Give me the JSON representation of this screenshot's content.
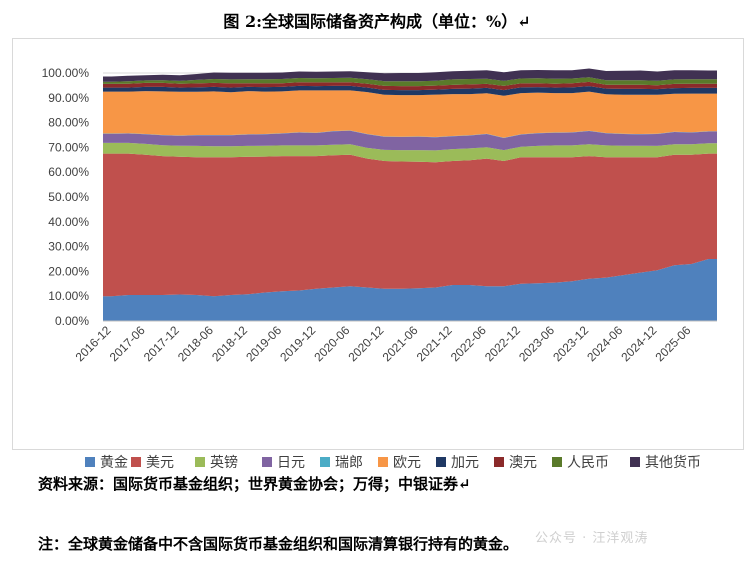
{
  "title": "图 2:全球国际储备资产构成（单位：%）↵",
  "source": "资料来源：国际货币基金组织；世界黄金协会；万得；中银证券↵",
  "note": "注：全球黄金储备中不含国际货币基金组织和国际清算银行持有的黄金。",
  "watermark": "公众号 · 汪洋观涛",
  "chart_data": {
    "type": "area",
    "stacked": true,
    "ylim": [
      0,
      100
    ],
    "yticks": [
      "0.00%",
      "10.00%",
      "20.00%",
      "30.00%",
      "40.00%",
      "50.00%",
      "60.00%",
      "70.00%",
      "80.00%",
      "90.00%",
      "100.00%"
    ],
    "x": [
      "2016-12",
      "2017-03",
      "2017-06",
      "2017-09",
      "2017-12",
      "2018-03",
      "2018-06",
      "2018-09",
      "2018-12",
      "2019-03",
      "2019-06",
      "2019-09",
      "2019-12",
      "2020-03",
      "2020-06",
      "2020-09",
      "2020-12",
      "2021-03",
      "2021-06",
      "2021-09",
      "2021-12",
      "2022-03",
      "2022-06",
      "2022-09",
      "2022-12",
      "2023-03",
      "2023-06",
      "2023-09",
      "2023-12",
      "2024-03",
      "2024-06",
      "2024-09",
      "2024-12",
      "2025-03",
      "2025-06",
      "2025-09"
    ],
    "xtick_labels": [
      "2016-12",
      "2017-06",
      "2017-12",
      "2018-06",
      "2018-12",
      "2019-06",
      "2019-12",
      "2020-06",
      "2020-12",
      "2021-06",
      "2021-12",
      "2022-06",
      "2022-12",
      "2023-06",
      "2023-12",
      "2024-06",
      "2024-12",
      "2025-06"
    ],
    "legend_position": "bottom",
    "series": [
      {
        "name": "黄金",
        "color": "#4f81bd",
        "values": [
          10,
          10.5,
          10.5,
          10.5,
          10.7,
          10.5,
          10,
          10.5,
          10.8,
          11.5,
          12,
          12.3,
          13,
          13.5,
          14,
          13.5,
          13,
          13,
          13.2,
          13.5,
          14.5,
          14.5,
          14,
          14,
          15,
          15.2,
          15.5,
          16,
          17,
          17.5,
          18.5,
          19.5,
          20.5,
          22.5,
          23,
          25
        ]
      },
      {
        "name": "美元",
        "color": "#c0504d",
        "values": [
          57.5,
          57,
          56.5,
          56,
          55.5,
          55.5,
          56,
          55.5,
          55.4,
          54.8,
          54.5,
          54.2,
          53.5,
          53.3,
          53,
          52,
          51.5,
          51.3,
          51,
          50.5,
          50,
          50.3,
          51.5,
          50.5,
          51,
          50.8,
          50.5,
          50,
          49.5,
          48.5,
          47.5,
          46.5,
          45.5,
          44.5,
          44,
          42.5
        ]
      },
      {
        "name": "英镑",
        "color": "#9bbb59",
        "values": [
          4.3,
          4.3,
          4.4,
          4.4,
          4.5,
          4.6,
          4.5,
          4.5,
          4.4,
          4.4,
          4.3,
          4.3,
          4.3,
          4.3,
          4.3,
          4.3,
          4.5,
          4.6,
          4.7,
          4.8,
          4.8,
          4.8,
          4.6,
          4.4,
          4.3,
          4.6,
          4.8,
          4.8,
          4.8,
          4.8,
          4.7,
          4.7,
          4.6,
          4.3,
          4.3,
          4.2
        ]
      },
      {
        "name": "日元",
        "color": "#8064a2",
        "values": [
          3.7,
          3.8,
          3.9,
          4,
          4,
          4.3,
          4.4,
          4.4,
          4.6,
          4.6,
          4.8,
          5.2,
          5,
          5.4,
          5.4,
          5.5,
          5.3,
          5.3,
          5.4,
          5.3,
          5.2,
          5.2,
          5.3,
          4.9,
          4.9,
          5.1,
          5.1,
          5.2,
          5.3,
          4.9,
          4.7,
          4.6,
          4.8,
          4.9,
          4.7,
          4.7
        ]
      },
      {
        "name": "瑞郎",
        "color": "#4bacc6",
        "values": [
          0.1,
          0.1,
          0.1,
          0.1,
          0.1,
          0.1,
          0.1,
          0.1,
          0.1,
          0.1,
          0.1,
          0.1,
          0.1,
          0.1,
          0.1,
          0.1,
          0.1,
          0.1,
          0.1,
          0.1,
          0.1,
          0.1,
          0.1,
          0.1,
          0.1,
          0.1,
          0.1,
          0.1,
          0.1,
          0.1,
          0.1,
          0.1,
          0.1,
          0.1,
          0.1,
          0.1
        ]
      },
      {
        "name": "欧元",
        "color": "#f79646",
        "values": [
          16.9,
          16.8,
          17.3,
          17.6,
          17.6,
          17.4,
          17.6,
          17.2,
          17.4,
          17.1,
          16.9,
          16.9,
          17.1,
          16.4,
          16.2,
          16.9,
          16.8,
          16.8,
          16.7,
          17.1,
          16.9,
          16.6,
          16.3,
          16.9,
          16.6,
          16.3,
          15.9,
          15.8,
          15.8,
          15.6,
          15.7,
          15.8,
          15.7,
          15.3,
          15.6,
          15.2
        ]
      },
      {
        "name": "加元",
        "color": "#1f3864",
        "values": [
          1.6,
          1.6,
          1.7,
          1.8,
          1.7,
          1.8,
          1.8,
          1.9,
          1.7,
          1.8,
          1.8,
          1.8,
          1.7,
          1.8,
          1.8,
          1.8,
          2,
          2,
          2,
          2,
          2.1,
          2.2,
          2.2,
          2.3,
          2.3,
          2.2,
          2.2,
          2.3,
          2.2,
          2.3,
          2.4,
          2.4,
          2.3,
          2.3,
          2.3,
          2.3
        ]
      },
      {
        "name": "澳元",
        "color": "#8b2a2a",
        "values": [
          1.5,
          1.6,
          1.6,
          1.6,
          1.6,
          1.6,
          1.6,
          1.7,
          1.5,
          1.5,
          1.5,
          1.5,
          1.5,
          1.4,
          1.5,
          1.6,
          1.6,
          1.6,
          1.6,
          1.6,
          1.6,
          1.7,
          1.6,
          1.7,
          1.6,
          1.6,
          1.6,
          1.7,
          1.7,
          1.6,
          1.7,
          1.7,
          1.6,
          1.7,
          1.7,
          1.7
        ]
      },
      {
        "name": "人民币",
        "color": "#5a7a2a",
        "values": [
          0.9,
          1,
          1,
          1.1,
          1.1,
          1.4,
          1.6,
          1.6,
          1.6,
          1.7,
          1.7,
          1.7,
          1.7,
          1.8,
          1.8,
          1.8,
          1.9,
          2,
          2,
          2,
          2.2,
          2.2,
          2.1,
          2,
          2,
          2,
          2,
          1.9,
          1.9,
          1.8,
          1.8,
          1.8,
          1.8,
          1.8,
          1.8,
          1.8
        ]
      },
      {
        "name": "其他货币",
        "color": "#403152",
        "values": [
          2.1,
          2.2,
          2.1,
          2.2,
          2.3,
          2.4,
          2.6,
          2.7,
          2.6,
          2.6,
          2.6,
          2.6,
          2.6,
          2.6,
          2.6,
          2.8,
          3.2,
          3.3,
          3.3,
          3.4,
          3.3,
          3.3,
          3.4,
          3.5,
          3.3,
          3.3,
          3.4,
          3.3,
          3.5,
          3.7,
          3.8,
          3.9,
          3.7,
          3.7,
          3.6,
          3.5
        ]
      }
    ]
  }
}
